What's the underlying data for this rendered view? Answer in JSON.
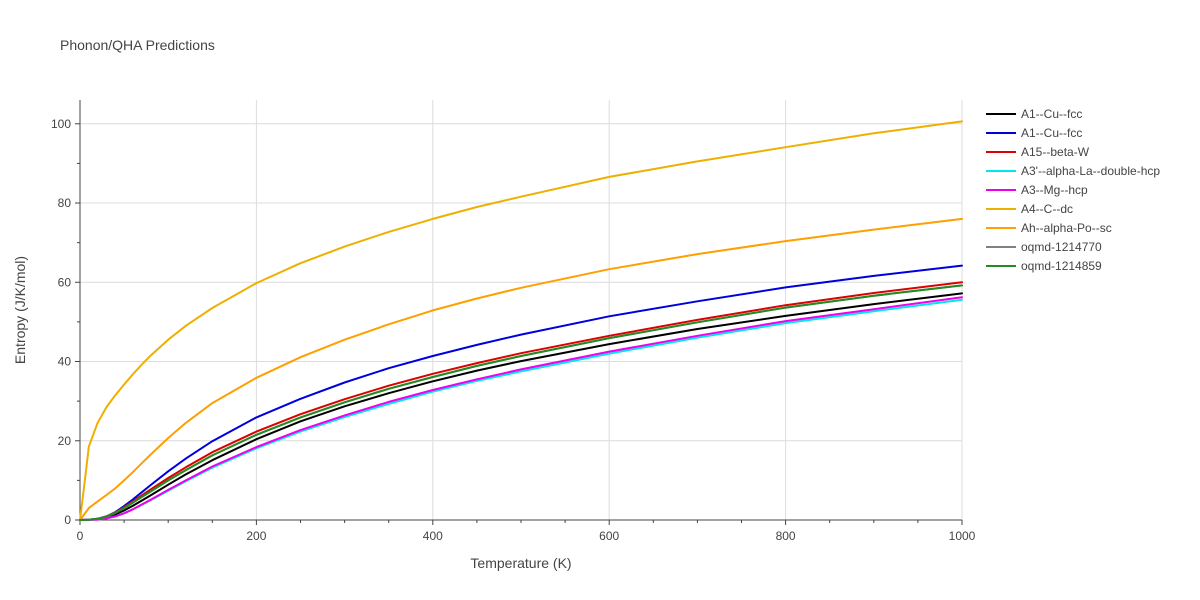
{
  "chart_data": {
    "type": "line",
    "title": "Phonon/QHA Predictions",
    "xlabel": "Temperature (K)",
    "ylabel": "Entropy (J/K/mol)",
    "xlim": [
      0,
      1000
    ],
    "ylim": [
      0,
      106
    ],
    "xticks": [
      0,
      200,
      400,
      600,
      800,
      1000
    ],
    "yticks": [
      0,
      20,
      40,
      60,
      80,
      100
    ],
    "grid": true,
    "legend_position": "right",
    "series": [
      {
        "name": "A1--Cu--fcc",
        "color": "#000000",
        "x": [
          0,
          10,
          20,
          30,
          40,
          50,
          60,
          70,
          80,
          100,
          120,
          150,
          200,
          250,
          300,
          350,
          400,
          450,
          500,
          600,
          700,
          800,
          900,
          1000
        ],
        "y": [
          0,
          0.05,
          0.25,
          0.7,
          1.4,
          2.4,
          3.6,
          4.9,
          6.2,
          8.9,
          11.5,
          15.1,
          20.4,
          24.9,
          28.7,
          32.0,
          35.0,
          37.7,
          40.1,
          44.4,
          48.2,
          51.5,
          54.5,
          57.2
        ]
      },
      {
        "name": "A1--Cu--fcc",
        "color": "#0000dd",
        "x": [
          0,
          10,
          20,
          30,
          40,
          50,
          60,
          70,
          80,
          100,
          120,
          150,
          200,
          250,
          300,
          350,
          400,
          450,
          500,
          600,
          700,
          800,
          900,
          1000
        ],
        "y": [
          0,
          0.05,
          0.3,
          0.9,
          2.0,
          3.5,
          5.2,
          7.0,
          8.8,
          12.3,
          15.5,
          19.9,
          25.9,
          30.6,
          34.7,
          38.3,
          41.4,
          44.2,
          46.8,
          51.4,
          55.2,
          58.7,
          61.6,
          64.2
        ]
      },
      {
        "name": "A15--beta-W",
        "color": "#dd0000",
        "x": [
          0,
          10,
          20,
          30,
          40,
          50,
          60,
          70,
          80,
          100,
          120,
          150,
          200,
          250,
          300,
          350,
          400,
          450,
          500,
          600,
          700,
          800,
          900,
          1000
        ],
        "y": [
          0,
          0.05,
          0.3,
          0.9,
          1.9,
          3.2,
          4.7,
          6.2,
          7.7,
          10.6,
          13.3,
          17.1,
          22.3,
          26.7,
          30.5,
          33.9,
          36.9,
          39.6,
          42.1,
          46.5,
          50.5,
          54.2,
          57.3,
          60.0
        ]
      },
      {
        "name": "A3'--alpha-La--double-hcp",
        "color": "#00e5ee",
        "x": [
          0,
          10,
          20,
          30,
          40,
          50,
          60,
          70,
          80,
          100,
          120,
          150,
          200,
          250,
          300,
          350,
          400,
          450,
          500,
          600,
          700,
          800,
          900,
          1000
        ],
        "y": [
          0,
          0.02,
          0.1,
          0.4,
          0.9,
          1.7,
          2.7,
          3.8,
          5.0,
          7.4,
          9.8,
          13.2,
          18.1,
          22.3,
          26.0,
          29.3,
          32.4,
          35.1,
          37.5,
          42.0,
          46.0,
          49.7,
          52.7,
          55.6
        ]
      },
      {
        "name": "A3--Mg--hcp",
        "color": "#ee00ee",
        "x": [
          0,
          10,
          20,
          30,
          40,
          50,
          60,
          70,
          80,
          100,
          120,
          150,
          200,
          250,
          300,
          350,
          400,
          450,
          500,
          600,
          700,
          800,
          900,
          1000
        ],
        "y": [
          0,
          0.02,
          0.1,
          0.4,
          0.9,
          1.7,
          2.7,
          3.9,
          5.1,
          7.6,
          10.0,
          13.5,
          18.4,
          22.7,
          26.4,
          29.8,
          32.8,
          35.5,
          38.0,
          42.5,
          46.5,
          50.2,
          53.2,
          56.2
        ]
      },
      {
        "name": "A4--C--dc",
        "color": "#eeb000",
        "x": [
          0,
          5,
          10,
          20,
          30,
          40,
          50,
          60,
          70,
          80,
          100,
          120,
          150,
          200,
          250,
          300,
          350,
          400,
          450,
          500,
          600,
          700,
          800,
          900,
          1000
        ],
        "y": [
          0,
          9,
          18.5,
          24.5,
          28.5,
          31.5,
          34.2,
          36.8,
          39.2,
          41.5,
          45.5,
          49.0,
          53.5,
          59.8,
          64.8,
          69.0,
          72.7,
          76.0,
          79.0,
          81.6,
          86.6,
          90.5,
          94.1,
          97.6,
          100.6
        ]
      },
      {
        "name": "Ah--alpha-Po--sc",
        "color": "#ff9f00",
        "x": [
          0,
          5,
          10,
          20,
          30,
          40,
          50,
          60,
          70,
          80,
          100,
          120,
          150,
          200,
          250,
          300,
          350,
          400,
          450,
          500,
          600,
          700,
          800,
          900,
          1000
        ],
        "y": [
          0,
          1.5,
          3.0,
          4.7,
          6.3,
          8.0,
          10.0,
          12.1,
          14.3,
          16.5,
          20.7,
          24.5,
          29.5,
          35.9,
          41.1,
          45.5,
          49.4,
          52.9,
          55.9,
          58.6,
          63.3,
          67.1,
          70.4,
          73.3,
          76.0
        ]
      },
      {
        "name": "oqmd-1214770",
        "color": "#808080",
        "x": [
          0,
          10,
          20,
          30,
          40,
          50,
          60,
          70,
          80,
          100,
          120,
          150,
          200,
          250,
          300,
          350,
          400,
          450,
          500,
          600,
          700,
          800,
          900,
          1000
        ],
        "y": [
          0,
          0.05,
          0.3,
          0.85,
          1.8,
          3.0,
          4.4,
          5.8,
          7.2,
          10.0,
          12.6,
          16.3,
          21.5,
          25.9,
          29.7,
          33.1,
          36.1,
          38.9,
          41.4,
          45.9,
          49.9,
          53.6,
          56.6,
          59.2
        ]
      },
      {
        "name": "oqmd-1214859",
        "color": "#228b22",
        "x": [
          0,
          10,
          20,
          30,
          40,
          50,
          60,
          70,
          80,
          100,
          120,
          150,
          200,
          250,
          300,
          350,
          400,
          450,
          500,
          600,
          700,
          800,
          900,
          1000
        ],
        "y": [
          0,
          0.05,
          0.3,
          0.85,
          1.8,
          3.0,
          4.4,
          5.8,
          7.2,
          10.0,
          12.6,
          16.3,
          21.5,
          25.9,
          29.7,
          33.1,
          36.1,
          38.9,
          41.4,
          45.9,
          49.9,
          53.6,
          56.6,
          59.2
        ]
      }
    ]
  }
}
